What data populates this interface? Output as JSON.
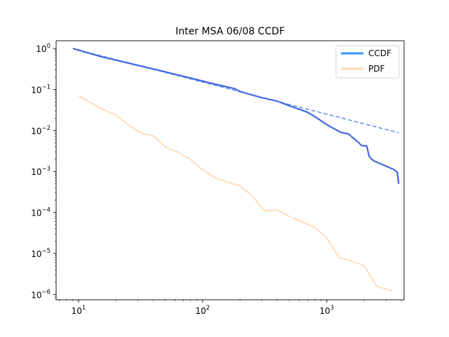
{
  "chart_data": {
    "type": "line",
    "title": "Inter MSA 06/08 CCDF",
    "xlabel": "",
    "ylabel": "",
    "xscale": "log",
    "yscale": "log",
    "xlim": [
      6.6,
      4200
    ],
    "ylim": [
      7.4e-07,
      1.55
    ],
    "grid": false,
    "legend_position": "top-right",
    "x_ticks": [
      {
        "base": "10",
        "exp": "1",
        "value": 10
      },
      {
        "base": "10",
        "exp": "2",
        "value": 100
      },
      {
        "base": "10",
        "exp": "3",
        "value": 1000
      }
    ],
    "y_ticks": [
      {
        "base": "10",
        "exp": "0",
        "value": 1
      },
      {
        "base": "10",
        "exp": "−1",
        "value": 0.1
      },
      {
        "base": "10",
        "exp": "−2",
        "value": 0.01
      },
      {
        "base": "10",
        "exp": "−3",
        "value": 0.001
      },
      {
        "base": "10",
        "exp": "−4",
        "value": 0.0001
      },
      {
        "base": "10",
        "exp": "−5",
        "value": 1e-05
      },
      {
        "base": "10",
        "exp": "−6",
        "value": 1e-06
      }
    ],
    "series": [
      {
        "name": "CCDF",
        "color": "#4169e1",
        "legend_color": "#3399ff",
        "style": "solid",
        "x": [
          9,
          12,
          15,
          20,
          30,
          50,
          80,
          120,
          180,
          200,
          220,
          300,
          400,
          500,
          700,
          800,
          1000,
          1100,
          1300,
          1500,
          1800,
          1900,
          2100,
          2200,
          2400,
          3500,
          3700,
          3800
        ],
        "y": [
          1.0,
          0.78,
          0.64,
          0.52,
          0.39,
          0.27,
          0.19,
          0.14,
          0.105,
          0.09,
          0.082,
          0.063,
          0.052,
          0.04,
          0.028,
          0.022,
          0.014,
          0.0118,
          0.009,
          0.0082,
          0.0051,
          0.0043,
          0.0042,
          0.0023,
          0.0018,
          0.0011,
          0.00095,
          0.0005
        ]
      },
      {
        "name": "",
        "color": "#6495ed",
        "style": "dashed",
        "x": [
          9,
          3800
        ],
        "y": [
          1.0,
          0.0088
        ]
      },
      {
        "name": "PDF",
        "color": "#ffdab9",
        "legend_color": "#ffdab9",
        "style": "solid",
        "x": [
          10,
          13,
          16,
          20,
          25,
          32,
          40,
          50,
          63,
          79,
          100,
          126,
          158,
          200,
          251,
          316,
          398,
          501,
          631,
          794,
          1000,
          1259,
          1585,
          1995,
          2512,
          3400
        ],
        "y": [
          0.07,
          0.045,
          0.032,
          0.024,
          0.014,
          0.0085,
          0.0075,
          0.0039,
          0.003,
          0.002,
          0.0011,
          0.0007,
          0.00055,
          0.00045,
          0.00025,
          0.00011,
          0.000115,
          8e-05,
          5.9e-05,
          4.4e-05,
          2.4e-05,
          7.8e-06,
          6.5e-06,
          5.1e-06,
          1.6e-06,
          1.2e-06
        ]
      }
    ]
  }
}
